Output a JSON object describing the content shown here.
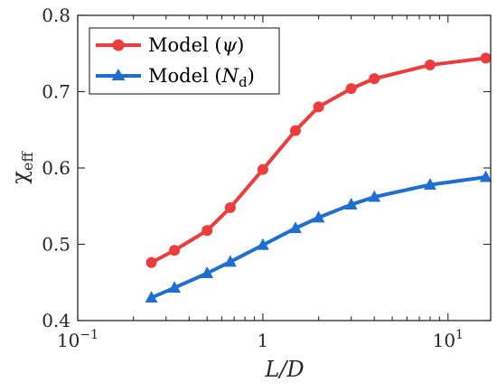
{
  "chart_data": {
    "type": "line",
    "xscale": "log",
    "xlim": [
      0.1,
      17
    ],
    "ylim": [
      0.4,
      0.8
    ],
    "xticks": [
      {
        "value": 0.1,
        "base": "10",
        "exp": "−1"
      },
      {
        "value": 1,
        "base": "1",
        "exp": ""
      },
      {
        "value": 10,
        "base": "10",
        "exp": "1"
      }
    ],
    "yticks": [
      {
        "value": 0.4,
        "label": "0.4"
      },
      {
        "value": 0.5,
        "label": "0.5"
      },
      {
        "value": 0.6,
        "label": "0.6"
      },
      {
        "value": 0.7,
        "label": "0.7"
      },
      {
        "value": 0.8,
        "label": "0.8"
      }
    ],
    "xlabel": "L/D",
    "ylabel": {
      "main": "χ",
      "sub": "eff"
    },
    "grid": false,
    "legend_position": "top-left",
    "x": [
      0.25,
      0.333,
      0.5,
      0.667,
      1,
      1.5,
      2,
      3,
      4,
      8,
      16
    ],
    "series": [
      {
        "name": "Model (ψ)",
        "legend_prefix": "Model (",
        "legend_symbol": "ψ",
        "legend_sub": "",
        "legend_suffix": ")",
        "marker": "circle",
        "color": "#EE3B3B",
        "values": [
          0.476,
          0.492,
          0.518,
          0.548,
          0.598,
          0.649,
          0.68,
          0.704,
          0.717,
          0.735,
          0.744
        ]
      },
      {
        "name": "Model (Nd)",
        "legend_prefix": "Model (",
        "legend_symbol": "N",
        "legend_sub": "d",
        "legend_suffix": ")",
        "marker": "triangle",
        "color": "#1F6FD1",
        "values": [
          0.43,
          0.443,
          0.462,
          0.477,
          0.499,
          0.521,
          0.535,
          0.552,
          0.562,
          0.578,
          0.588
        ]
      }
    ]
  }
}
